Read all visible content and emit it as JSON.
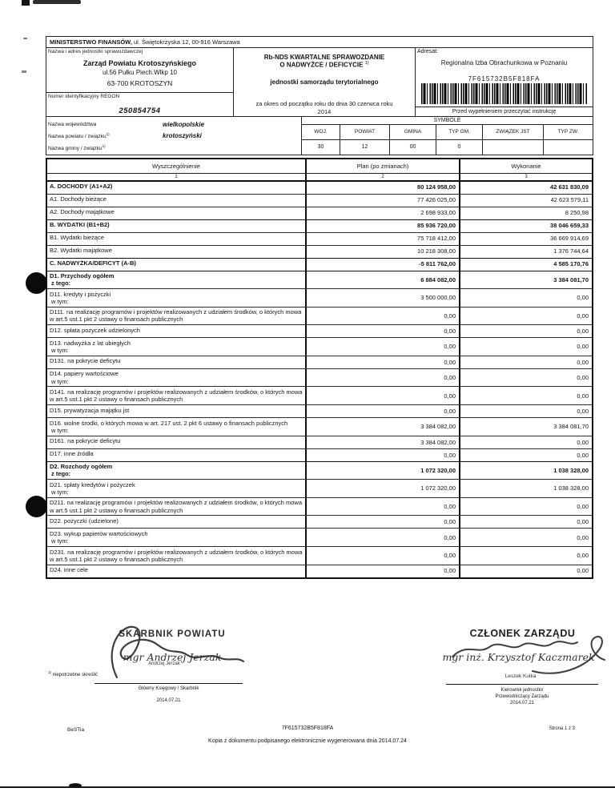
{
  "header": {
    "ministry_name": "MINISTERSTWO FINANSÓW,",
    "ministry_addr": "ul. Świętokrzyska 12, 00-916 Warszawa",
    "unit_label": "Nazwa i adres jednostki sprawozdawczej",
    "unit_name": "Zarząd Powiatu Krotoszyńskiego",
    "unit_street": "ul.56 Pułku Piech.Wlkp 10",
    "unit_city": "63-700 KROTOSZYN",
    "regon_label": "Numer identyfikacyjny REGON",
    "regon": "250854754",
    "report_title_1": "Rb-NDS KWARTALNE SPRAWOZDANIE",
    "report_title_2": "O NADWYŻCE / DEFICYCIE",
    "report_title_sup": "1)",
    "report_subtitle": "jednostki samorządu terytorialnego",
    "report_period_line1": "za okres od początku roku do dnia 30 czerwca roku",
    "report_period_line2": "2014",
    "addressee_label": "Adresat:",
    "addressee": "Regionalna Izba Obrachunkowa w Poznaniu",
    "barcode_text": "7F615732B5F818FA",
    "instruction": "Przed wypełnieniem przeczytać instrukcję"
  },
  "region": {
    "rows": [
      {
        "label": "Nazwa województwa",
        "sup": "",
        "value": "wielkopolskie"
      },
      {
        "label": "Nazwa powiatu / związku",
        "sup": "1)",
        "value": "krotoszyński"
      },
      {
        "label": "Nazwa gminy / związku",
        "sup": "1)",
        "value": ""
      }
    ],
    "symbole_title": "SYMBOLE",
    "columns": [
      "WOJ.",
      "POWIAT",
      "GMINA",
      "TYP GM.",
      "ZWIĄZEK JST",
      "TYP ZW."
    ],
    "values": [
      "30",
      "12",
      "00",
      "0",
      "",
      ""
    ]
  },
  "table": {
    "headers": [
      "Wyszczególnienie",
      "Plan (po zmianach)",
      "Wykonanie"
    ],
    "col_numbers": [
      "1",
      "2",
      "3"
    ],
    "rows": [
      {
        "label": "A. DOCHODY (A1+A2)",
        "sub": "",
        "plan": "80 124 958,00",
        "wykonanie": "42 631 830,09",
        "bold": true
      },
      {
        "label": "A1. Dochody bieżące",
        "sub": "",
        "plan": "77 426 025,00",
        "wykonanie": "42 623 579,11",
        "bold": false
      },
      {
        "label": "A2. Dochody majątkowe",
        "sub": "",
        "plan": "2 698 933,00",
        "wykonanie": "8 250,98",
        "bold": false
      },
      {
        "label": "B. WYDATKI (B1+B2)",
        "sub": "",
        "plan": "85 936 720,00",
        "wykonanie": "38 046 659,33",
        "bold": true
      },
      {
        "label": "B1. Wydatki bieżące",
        "sub": "",
        "plan": "75 718 412,00",
        "wykonanie": "36 669 914,69",
        "bold": false
      },
      {
        "label": "B2. Wydatki majątkowe",
        "sub": "",
        "plan": "10 218 308,00",
        "wykonanie": "1 376 744,64",
        "bold": false
      },
      {
        "label": "C. NADWYŻKA/DEFICYT (A-B)",
        "sub": "",
        "plan": "-5 811 762,00",
        "wykonanie": "4 585 170,76",
        "bold": true
      },
      {
        "label": "D1. Przychody ogółem",
        "sub": "z tego:",
        "plan": "6 884 082,00",
        "wykonanie": "3 384 081,70",
        "bold": true
      },
      {
        "label": "D11. kredyty i pożyczki",
        "sub": "w tym:",
        "plan": "3 500 000,00",
        "wykonanie": "0,00",
        "bold": false
      },
      {
        "label": "D111. na realizację programów i projektów realizowanych z udziałem środków, o których mowa w art.5 ust.1 pkt 2 ustawy o finansach publicznych",
        "sub": "",
        "plan": "0,00",
        "wykonanie": "0,00",
        "bold": false
      },
      {
        "label": "D12. spłata pożyczek udzielonych",
        "sub": "",
        "plan": "0,00",
        "wykonanie": "0,00",
        "bold": false
      },
      {
        "label": "D13. nadwyżka z lat ubiegłych",
        "sub": "w tym:",
        "plan": "0,00",
        "wykonanie": "0,00",
        "bold": false
      },
      {
        "label": "D131. na pokrycie deficytu",
        "sub": "",
        "plan": "0,00",
        "wykonanie": "0,00",
        "bold": false
      },
      {
        "label": "D14. papiery wartościowe",
        "sub": "w tym:",
        "plan": "0,00",
        "wykonanie": "0,00",
        "bold": false
      },
      {
        "label": "D141. na realizację programów i projektów realizowanych z udziałem środków, o których mowa w art.5 ust.1 pkt 2 ustawy o finansach publicznych",
        "sub": "",
        "plan": "0,00",
        "wykonanie": "0,00",
        "bold": false
      },
      {
        "label": "D15. prywatyzacja majątku jst",
        "sub": "",
        "plan": "0,00",
        "wykonanie": "0,00",
        "bold": false
      },
      {
        "label": "D16. wolne środki, o których mowa w art. 217 ust. 2 pkt 6 ustawy o finansach publicznych",
        "sub": "w tym:",
        "plan": "3 384 082,00",
        "wykonanie": "3 384 081,70",
        "bold": false
      },
      {
        "label": "D161. na pokrycie deficytu",
        "sub": "",
        "plan": "3 384 082,00",
        "wykonanie": "0,00",
        "bold": false
      },
      {
        "label": "D17. inne źródła",
        "sub": "",
        "plan": "0,00",
        "wykonanie": "0,00",
        "bold": false
      },
      {
        "label": "D2. Rozchody ogółem",
        "sub": "z tego:",
        "plan": "1 072 320,00",
        "wykonanie": "1 038 328,00",
        "bold": true
      },
      {
        "label": "D21. spłaty kredytów i pożyczek",
        "sub": "w tym:",
        "plan": "1 072 320,00",
        "wykonanie": "1 038 328,00",
        "bold": false
      },
      {
        "label": "D211. na realizację programów i projektów realizowanych z udziałem środków, o których mowa w art.5 ust.1 pkt 2 ustawy o finansach publicznych",
        "sub": "",
        "plan": "0,00",
        "wykonanie": "0,00",
        "bold": false
      },
      {
        "label": "D22. pożyczki (udzielone)",
        "sub": "",
        "plan": "0,00",
        "wykonanie": "0,00",
        "bold": false
      },
      {
        "label": "D23. wykup papierów wartościowych",
        "sub": "w tym:",
        "plan": "0,00",
        "wykonanie": "0,00",
        "bold": false
      },
      {
        "label": "D231. na realizację programów i projektów realizowanych z udziałem środków, o których mowa w art.5 ust.1 pkt 2 ustawy o finansach publicznych",
        "sub": "",
        "plan": "0,00",
        "wykonanie": "0,00",
        "bold": false
      },
      {
        "label": "D24. inne cele",
        "sub": "",
        "plan": "0,00",
        "wykonanie": "0,00",
        "bold": false
      }
    ]
  },
  "signatures": {
    "footnote_marker": "1)",
    "footnote_text": "niepotrzebne skreślić",
    "left": {
      "stamp_line1": "SKARBNIK POWIATU",
      "stamp_line2": "mgr Andrzej Jerzak",
      "typed_name": "Andrzej Jerzak",
      "role": "Główny Księgowy / Skarbnik",
      "date": "2014.07.21"
    },
    "right": {
      "stamp_line1": "CZŁONEK ZARZĄDU",
      "stamp_line2": "mgr inż. Krzysztof Kaczmarek",
      "typed_name": "Leszek Kulka",
      "role_line1": "Kierownik jednostki/",
      "role_line2": "Przewodniczący Zarządu",
      "date": "2014.07.21"
    }
  },
  "footer": {
    "app": "BeSTia",
    "code": "7F615732B5F818FA",
    "note": "Kopia z dokumentu podpisanego elektronicznie wygenerowana dnia 2014.07.24",
    "page": "Strona 1 z 3"
  }
}
